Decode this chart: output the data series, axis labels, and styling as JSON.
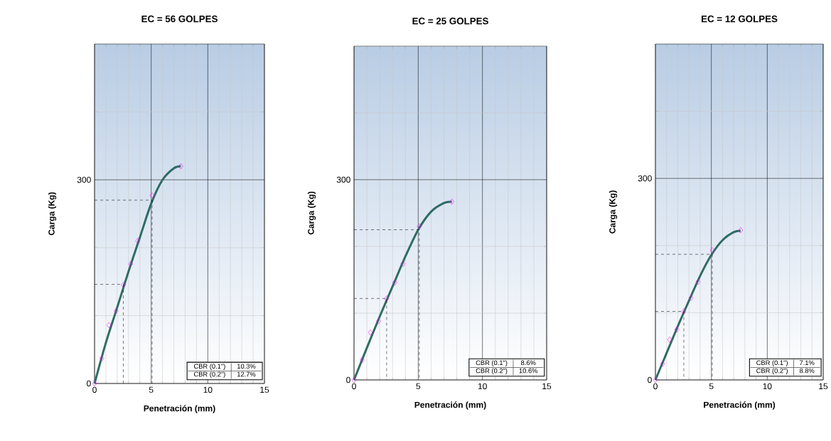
{
  "chart_data": [
    {
      "type": "line",
      "title": "EC = 56 GOLPES",
      "xlabel": "Penetración (mm)",
      "ylabel": "Carga (Kg)",
      "xlim": [
        0,
        15
      ],
      "ylim": [
        0,
        500
      ],
      "xticks": [
        0,
        {
          "value": 1,
          "label": null
        },
        {
          "value": 2,
          "label": null
        },
        {
          "value": 3,
          "label": null
        },
        {
          "value": 4,
          "label": null
        },
        5,
        {
          "value": 6,
          "label": null
        },
        {
          "value": 7,
          "label": null
        },
        {
          "value": 8,
          "label": null
        },
        {
          "value": 9,
          "label": null
        },
        10,
        {
          "value": 11,
          "label": null
        },
        {
          "value": 12,
          "label": null
        },
        {
          "value": 13,
          "label": null
        },
        {
          "value": 14,
          "label": null
        },
        15
      ],
      "yticks": [
        0,
        {
          "value": 100,
          "label": null
        },
        {
          "value": 200,
          "label": null
        },
        300,
        {
          "value": 400,
          "label": null
        }
      ],
      "grid": true,
      "series": [
        {
          "type": "line",
          "color": "#2e6b64",
          "line_style": "solid",
          "marker": "none",
          "x": [
            0,
            1,
            2,
            3,
            4,
            5,
            6,
            7,
            7.62
          ],
          "values": [
            0,
            60,
            112,
            165,
            215,
            265,
            300,
            317,
            320
          ]
        },
        {
          "type": "scatter",
          "color": "#ff00ff",
          "marker": "diamond",
          "x": [
            0,
            0.64,
            1.27,
            1.91,
            2.54,
            3.18,
            3.81,
            5.08,
            7.62
          ],
          "values": [
            0,
            37,
            86,
            107,
            145,
            176,
            210,
            277,
            320
          ]
        },
        {
          "type": "line",
          "color": "#000000",
          "line_style": "dashed",
          "marker": "none",
          "x": [
            0,
            2.54,
            2.54
          ],
          "values": [
            146,
            146,
            0
          ]
        },
        {
          "type": "line",
          "color": "#000000",
          "line_style": "dashed",
          "marker": "none",
          "x": [
            0,
            5.08,
            5.08
          ],
          "values": [
            270,
            270,
            0
          ]
        }
      ],
      "annotations": [
        "CBR (0.1\")",
        "10.3%",
        "CBR (0.2\")",
        "12.7%"
      ]
    },
    {
      "type": "line",
      "title": "EC = 25 GOLPES",
      "xlabel": "Penetración (mm)",
      "ylabel": "Carga (Kg)",
      "xlim": [
        0,
        15
      ],
      "ylim": [
        0,
        500
      ],
      "xticks": [
        0,
        {
          "value": 1,
          "label": null
        },
        {
          "value": 2,
          "label": null
        },
        {
          "value": 3,
          "label": null
        },
        {
          "value": 4,
          "label": null
        },
        5,
        {
          "value": 6,
          "label": null
        },
        {
          "value": 7,
          "label": null
        },
        {
          "value": 8,
          "label": null
        },
        {
          "value": 9,
          "label": null
        },
        10,
        {
          "value": 11,
          "label": null
        },
        {
          "value": 12,
          "label": null
        },
        {
          "value": 13,
          "label": null
        },
        {
          "value": 14,
          "label": null
        },
        15
      ],
      "yticks": [
        0,
        {
          "value": 100,
          "label": null
        },
        {
          "value": 200,
          "label": null
        },
        300,
        {
          "value": 400,
          "label": null
        }
      ],
      "grid": true,
      "series": [
        {
          "type": "line",
          "color": "#2e6b64",
          "line_style": "solid",
          "marker": "none",
          "x": [
            0,
            1,
            2,
            3,
            4,
            5,
            6,
            7,
            7.62
          ],
          "values": [
            0,
            48,
            95,
            140,
            185,
            225,
            252,
            265,
            267
          ]
        },
        {
          "type": "scatter",
          "color": "#ff00ff",
          "marker": "diamond",
          "x": [
            0,
            0.64,
            1.27,
            1.91,
            2.54,
            3.18,
            3.81,
            5.08,
            7.62
          ],
          "values": [
            0,
            30,
            71,
            88,
            122,
            146,
            174,
            230,
            267
          ]
        },
        {
          "type": "line",
          "color": "#000000",
          "line_style": "dashed",
          "marker": "none",
          "x": [
            0,
            2.54,
            2.54
          ],
          "values": [
            122,
            122,
            0
          ]
        },
        {
          "type": "line",
          "color": "#000000",
          "line_style": "dashed",
          "marker": "none",
          "x": [
            0,
            5.08,
            5.08
          ],
          "values": [
            225,
            225,
            0
          ]
        }
      ],
      "annotations": [
        "CBR (0.1\")",
        "8.6%",
        "CBR (0.2\")",
        "10.6%"
      ]
    },
    {
      "type": "line",
      "title": "EC = 12 GOLPES",
      "xlabel": "Penetración (mm)",
      "ylabel": "Carga (Kg)",
      "xlim": [
        0,
        15
      ],
      "ylim": [
        0,
        500
      ],
      "xticks": [
        0,
        {
          "value": 1,
          "label": null
        },
        {
          "value": 2,
          "label": null
        },
        {
          "value": 3,
          "label": null
        },
        {
          "value": 4,
          "label": null
        },
        5,
        {
          "value": 6,
          "label": null
        },
        {
          "value": 7,
          "label": null
        },
        {
          "value": 8,
          "label": null
        },
        {
          "value": 9,
          "label": null
        },
        10,
        {
          "value": 11,
          "label": null
        },
        {
          "value": 12,
          "label": null
        },
        {
          "value": 13,
          "label": null
        },
        {
          "value": 14,
          "label": null
        },
        15
      ],
      "yticks": [
        0,
        {
          "value": 100,
          "label": null
        },
        {
          "value": 200,
          "label": null
        },
        300,
        {
          "value": 400,
          "label": null
        }
      ],
      "grid": true,
      "series": [
        {
          "type": "line",
          "color": "#2e6b64",
          "line_style": "solid",
          "marker": "none",
          "x": [
            0,
            1,
            2,
            3,
            4,
            5,
            6,
            7,
            7.62
          ],
          "values": [
            0,
            40,
            80,
            118,
            155,
            186,
            208,
            220,
            222
          ]
        },
        {
          "type": "scatter",
          "color": "#ff00ff",
          "marker": "diamond",
          "x": [
            0,
            0.64,
            1.27,
            1.91,
            2.54,
            3.18,
            3.81,
            5.08,
            7.62
          ],
          "values": [
            0,
            24,
            60,
            75,
            102,
            122,
            146,
            193,
            223
          ]
        },
        {
          "type": "line",
          "color": "#000000",
          "line_style": "dashed",
          "marker": "none",
          "x": [
            0,
            2.54,
            2.54
          ],
          "values": [
            102,
            102,
            0
          ]
        },
        {
          "type": "line",
          "color": "#000000",
          "line_style": "dashed",
          "marker": "none",
          "x": [
            0,
            5.08,
            5.08
          ],
          "values": [
            187,
            187,
            0
          ]
        }
      ],
      "annotations": [
        "CBR (0.1\")",
        "7.1%",
        "CBR (0.2\")",
        "8.8%"
      ]
    }
  ]
}
